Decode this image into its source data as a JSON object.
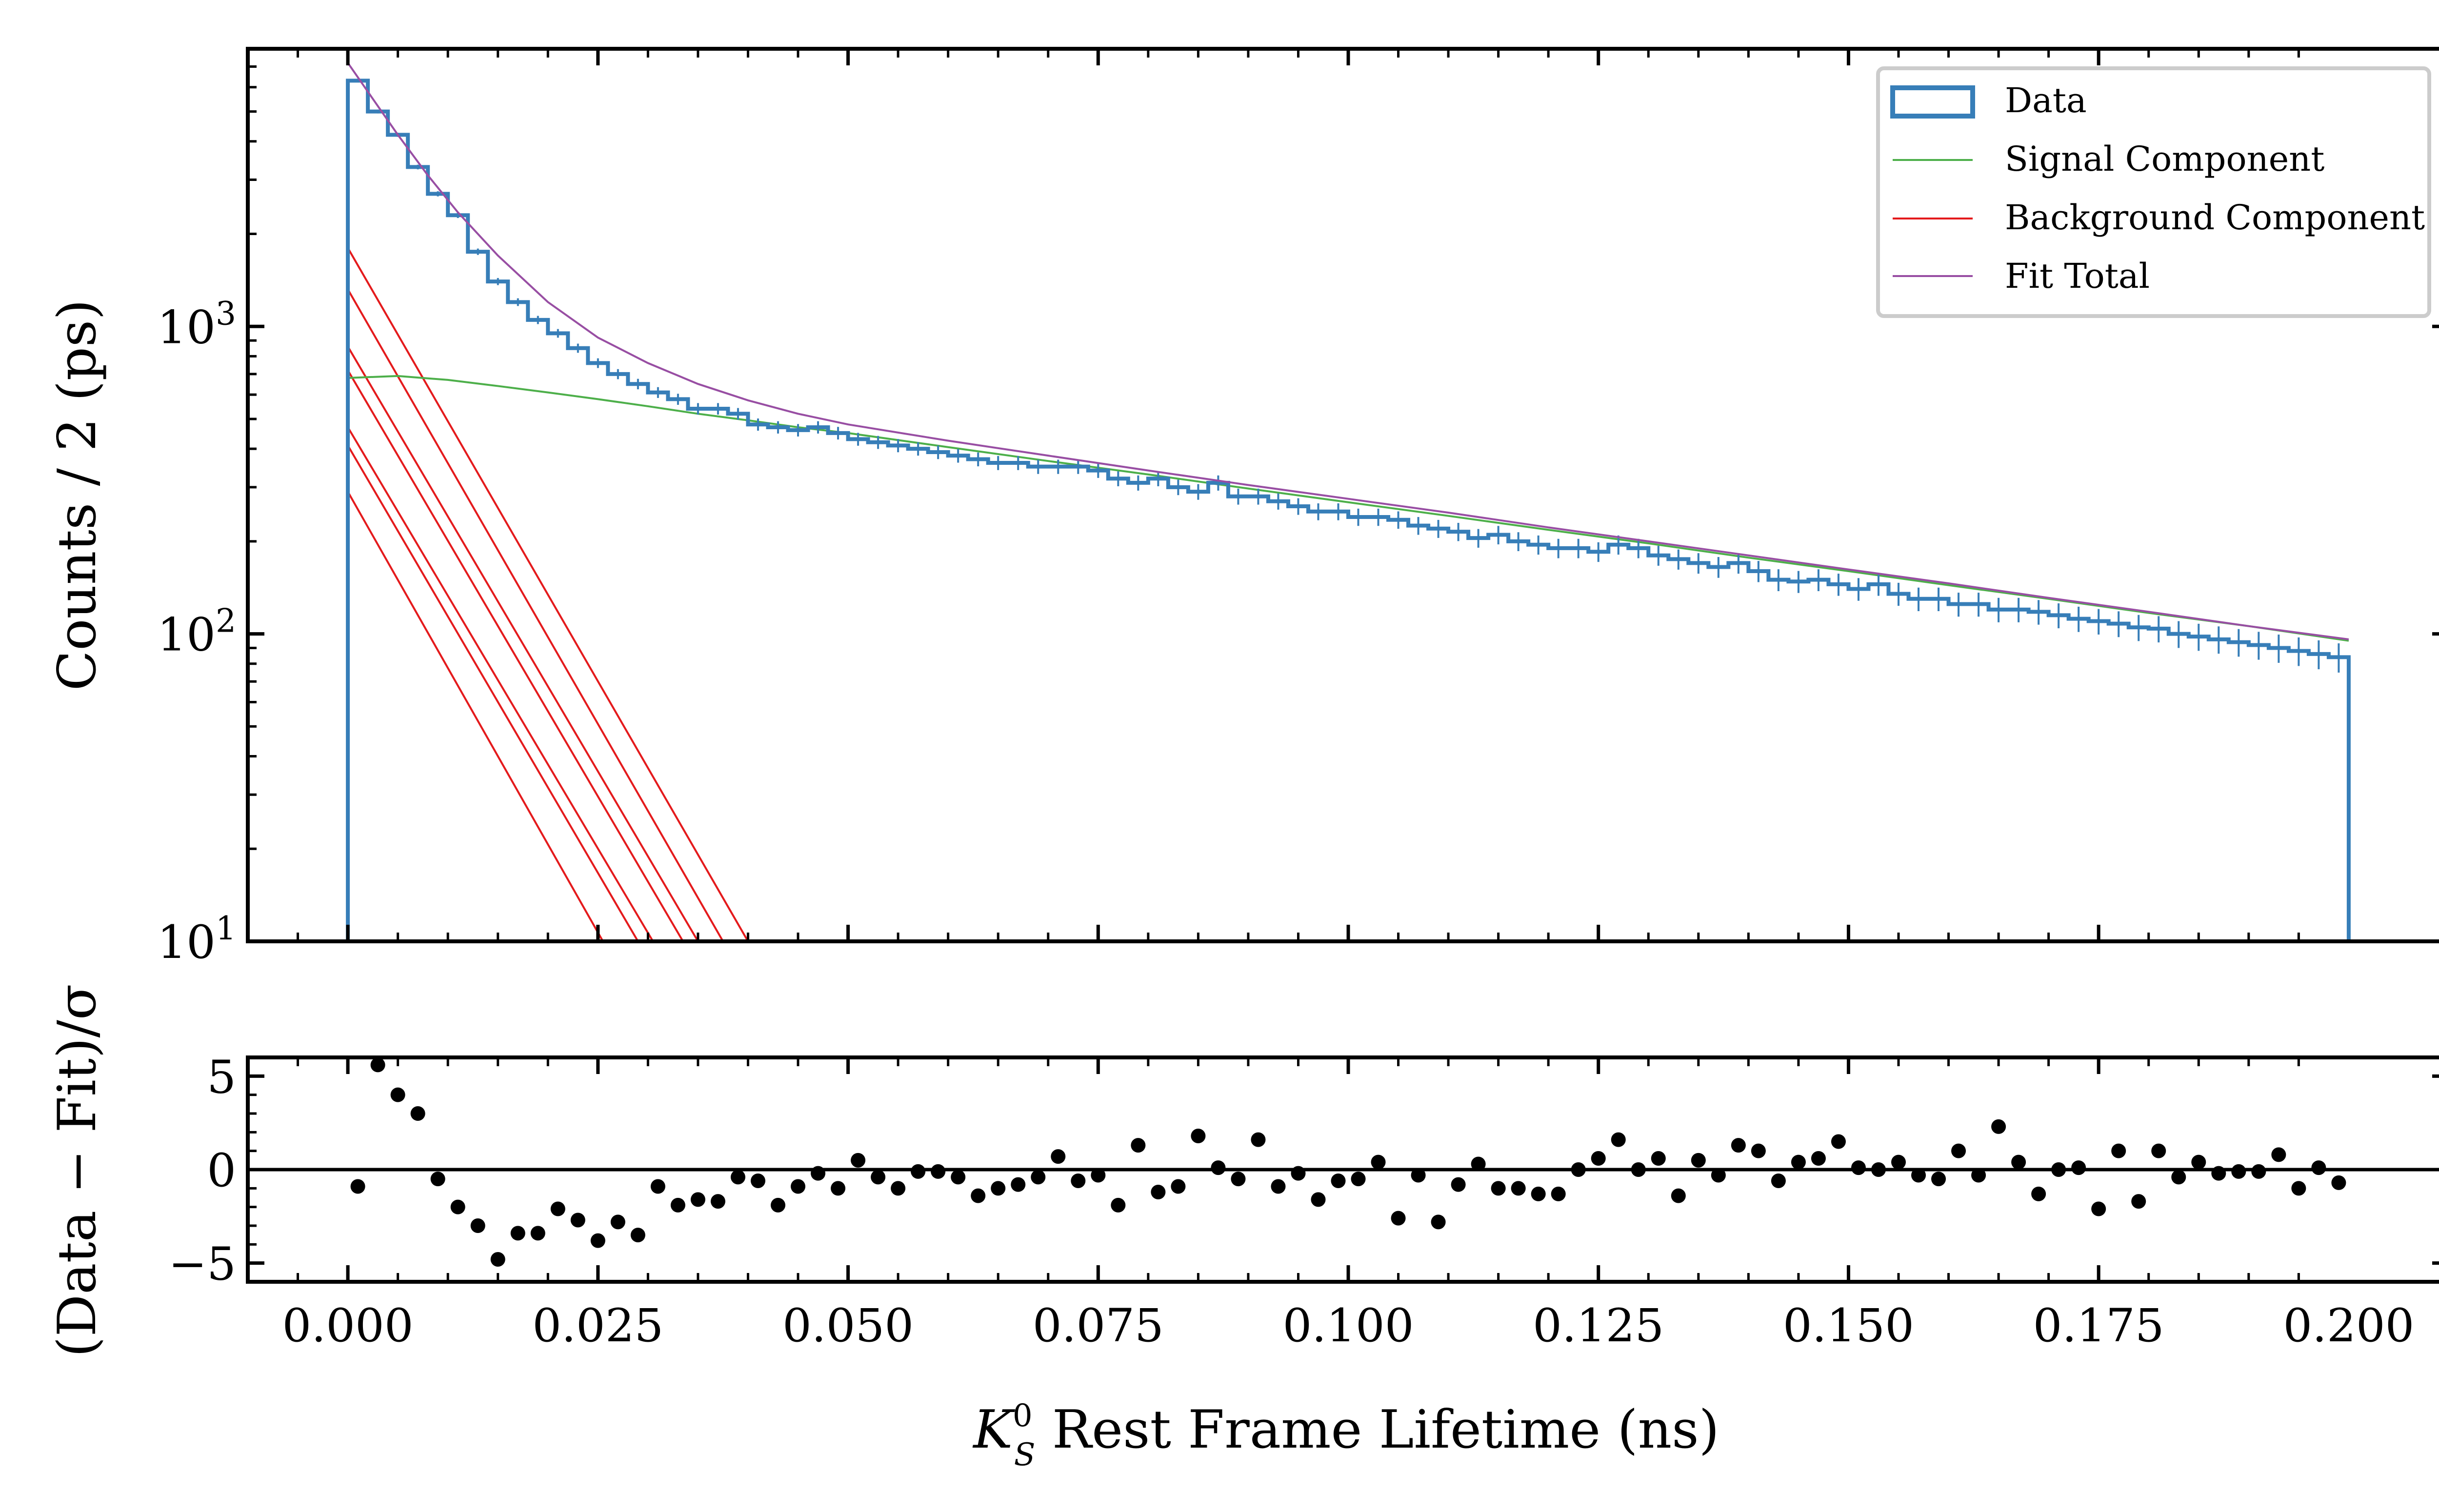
{
  "colors": {
    "data": "#377eb8",
    "signal": "#4daf4a",
    "background": "#e41a1c",
    "total": "#984ea3",
    "residual": "#000000"
  },
  "chart_data": [
    {
      "type": "line",
      "panel": "main",
      "yscale": "log",
      "xlim": [
        -0.01,
        0.21
      ],
      "ylim": [
        10,
        8000
      ],
      "ytick_labels": [
        "10^1",
        "10^2",
        "10^3"
      ],
      "ylabel": "Counts / 2 (ps)",
      "legend": {
        "placement": "top-right",
        "entries": [
          "Data",
          "Signal Component",
          "Background Component",
          "Fit Total"
        ]
      },
      "series": [
        {
          "name": "Data",
          "style": "step-histogram-with-errorbars",
          "bin_width": 0.002,
          "bin_start": 0.0,
          "values": [
            6300,
            5000,
            4200,
            3300,
            2700,
            2300,
            1750,
            1400,
            1200,
            1050,
            950,
            850,
            760,
            700,
            650,
            610,
            580,
            540,
            540,
            520,
            480,
            470,
            460,
            470,
            450,
            430,
            420,
            410,
            400,
            390,
            380,
            370,
            360,
            360,
            350,
            350,
            350,
            340,
            320,
            310,
            320,
            300,
            290,
            310,
            280,
            280,
            270,
            260,
            250,
            250,
            240,
            240,
            235,
            225,
            220,
            215,
            205,
            210,
            200,
            195,
            190,
            190,
            185,
            195,
            190,
            180,
            175,
            170,
            165,
            170,
            160,
            150,
            148,
            150,
            145,
            140,
            145,
            135,
            130,
            130,
            125,
            125,
            120,
            120,
            118,
            115,
            112,
            110,
            108,
            105,
            104,
            100,
            98,
            96,
            94,
            92,
            90,
            88,
            86,
            84
          ]
        },
        {
          "name": "Signal Component",
          "x": [
            0.0,
            0.005,
            0.01,
            0.015,
            0.02,
            0.025,
            0.03,
            0.035,
            0.04,
            0.045,
            0.05,
            0.06,
            0.07,
            0.08,
            0.09,
            0.1,
            0.11,
            0.12,
            0.13,
            0.14,
            0.15,
            0.16,
            0.17,
            0.18,
            0.19,
            0.2
          ],
          "y": [
            680,
            690,
            670,
            640,
            610,
            580,
            550,
            520,
            495,
            470,
            450,
            405,
            365,
            330,
            297,
            268,
            242,
            218,
            197,
            177,
            160,
            144,
            130,
            117,
            106,
            95
          ]
        },
        {
          "name": "Background Component",
          "style": "exponential-lines",
          "x_start": 0.0,
          "components": [
            {
              "y0": 1800,
              "y_at_end": 10,
              "x_end": 0.04
            },
            {
              "y0": 1320,
              "y_at_end": 10,
              "x_end": 0.0375
            },
            {
              "y0": 860,
              "y_at_end": 10,
              "x_end": 0.035
            },
            {
              "y0": 720,
              "y_at_end": 10,
              "x_end": 0.0335
            },
            {
              "y0": 470,
              "y_at_end": 10,
              "x_end": 0.0305
            },
            {
              "y0": 410,
              "y_at_end": 10,
              "x_end": 0.029
            },
            {
              "y0": 290,
              "y_at_end": 10,
              "x_end": 0.0255
            }
          ]
        },
        {
          "name": "Fit Total",
          "x": [
            0.0,
            0.002,
            0.005,
            0.008,
            0.011,
            0.015,
            0.02,
            0.025,
            0.03,
            0.035,
            0.04,
            0.045,
            0.05,
            0.06,
            0.07,
            0.08,
            0.09,
            0.1,
            0.11,
            0.12,
            0.13,
            0.14,
            0.15,
            0.16,
            0.17,
            0.18,
            0.19,
            0.2
          ],
          "y": [
            7200,
            5800,
            4200,
            3100,
            2350,
            1700,
            1200,
            920,
            760,
            650,
            575,
            520,
            480,
            425,
            380,
            340,
            305,
            275,
            248,
            222,
            200,
            180,
            162,
            146,
            131,
            118,
            106,
            96
          ]
        }
      ]
    },
    {
      "type": "scatter",
      "panel": "residual",
      "xlim": [
        -0.01,
        0.21
      ],
      "ylim": [
        -6,
        6
      ],
      "xlabel": "K_S^0 Rest Frame Lifetime (ns)",
      "xlabel_parts": {
        "sym": "K",
        "sup": "0",
        "sub": "S",
        "rest": " Rest Frame Lifetime (ns)"
      },
      "ylabel": "(Data − Fit)/σ",
      "yticks": [
        -5,
        0,
        5
      ],
      "ytick_labels": [
        "−5",
        "0",
        "5"
      ],
      "xticks": [
        0.0,
        0.025,
        0.05,
        0.075,
        0.1,
        0.125,
        0.15,
        0.175,
        0.2
      ],
      "xtick_labels": [
        "0.000",
        "0.025",
        "0.050",
        "0.075",
        "0.100",
        "0.125",
        "0.150",
        "0.175",
        "0.200"
      ],
      "x": [
        0.001,
        0.003,
        0.005,
        0.007,
        0.009,
        0.011,
        0.013,
        0.015,
        0.017,
        0.019,
        0.021,
        0.023,
        0.025,
        0.027,
        0.029,
        0.031,
        0.033,
        0.035,
        0.037,
        0.039,
        0.041,
        0.043,
        0.045,
        0.047,
        0.049,
        0.051,
        0.053,
        0.055,
        0.057,
        0.059,
        0.061,
        0.063,
        0.065,
        0.067,
        0.069,
        0.071,
        0.073,
        0.075,
        0.077,
        0.079,
        0.081,
        0.083,
        0.085,
        0.087,
        0.089,
        0.091,
        0.093,
        0.095,
        0.097,
        0.099,
        0.101,
        0.103,
        0.105,
        0.107,
        0.109,
        0.111,
        0.113,
        0.115,
        0.117,
        0.119,
        0.121,
        0.123,
        0.125,
        0.127,
        0.129,
        0.131,
        0.133,
        0.135,
        0.137,
        0.139,
        0.141,
        0.143,
        0.145,
        0.147,
        0.149,
        0.151,
        0.153,
        0.155,
        0.157,
        0.159,
        0.161,
        0.163,
        0.165,
        0.167,
        0.169,
        0.171,
        0.173,
        0.175,
        0.177,
        0.179,
        0.181,
        0.183,
        0.185,
        0.187,
        0.189,
        0.191,
        0.193,
        0.195,
        0.197,
        0.199
      ],
      "y": [
        -0.9,
        5.6,
        4.0,
        3.0,
        -0.5,
        -2.0,
        -3.0,
        -4.8,
        -3.4,
        -3.4,
        -2.1,
        -2.7,
        -3.8,
        -2.8,
        -3.5,
        -0.9,
        -1.9,
        -1.6,
        -1.7,
        -0.4,
        -0.6,
        -1.9,
        -0.9,
        -0.2,
        -1.0,
        0.5,
        -0.4,
        -1.0,
        -0.1,
        -0.1,
        -0.4,
        -1.4,
        -1.0,
        -0.8,
        -0.4,
        0.7,
        -0.6,
        -0.3,
        -1.9,
        1.3,
        -1.2,
        -0.9,
        1.8,
        0.1,
        -0.5,
        1.6,
        -0.9,
        -0.2,
        -1.6,
        -0.6,
        -0.5,
        0.4,
        -2.6,
        -0.3,
        -2.8,
        -0.8,
        0.3,
        -1.0,
        -1.0,
        -1.3,
        -1.3,
        0.0,
        0.6,
        1.6,
        0.0,
        0.6,
        -1.4,
        0.5,
        -0.3,
        1.3,
        1.0,
        -0.6,
        0.4,
        0.6,
        1.5,
        0.1,
        0.0,
        0.4,
        -0.3,
        -0.5,
        1.0,
        -0.3,
        2.3,
        0.4,
        -1.3,
        0.0,
        0.1,
        -2.1,
        1.0,
        -1.7,
        1.0,
        -0.4,
        0.4,
        -0.2,
        -0.1,
        -0.1,
        0.8,
        -1.0,
        0.1,
        -0.7
      ]
    }
  ]
}
